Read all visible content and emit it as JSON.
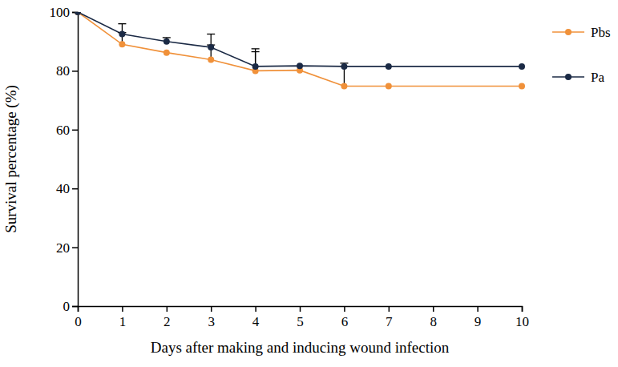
{
  "chart_data": {
    "type": "line",
    "x_label": "Days after making and inducing wound infection",
    "y_label": "Survival percentage (%)",
    "x": [
      0,
      1,
      2,
      3,
      4,
      5,
      6,
      7,
      10
    ],
    "xlim": [
      0,
      10
    ],
    "xticks": [
      0,
      1,
      2,
      3,
      4,
      5,
      6,
      7,
      8,
      9,
      10
    ],
    "ylim": [
      0,
      100
    ],
    "yticks": [
      0,
      20,
      40,
      60,
      80,
      100
    ],
    "grid": false,
    "legend": "right",
    "series": [
      {
        "name": "Pbs",
        "color": "#f0913a",
        "marker": "circle",
        "line_style": "solid",
        "values": [
          100,
          89,
          86.2,
          83.8,
          80,
          80.2,
          74.8,
          74.8,
          74.8
        ],
        "errors": [
          0,
          4,
          0,
          5,
          6.5,
          0,
          7.8,
          0,
          0
        ]
      },
      {
        "name": "Pa",
        "color": "#1b2a45",
        "marker": "circle",
        "line_style": "solid",
        "values": [
          100,
          92.5,
          90,
          88,
          81.5,
          81.7,
          81.5,
          81.5,
          81.5
        ],
        "errors": [
          0,
          3.5,
          1.3,
          4.5,
          6,
          0,
          0,
          0,
          0
        ]
      }
    ]
  }
}
